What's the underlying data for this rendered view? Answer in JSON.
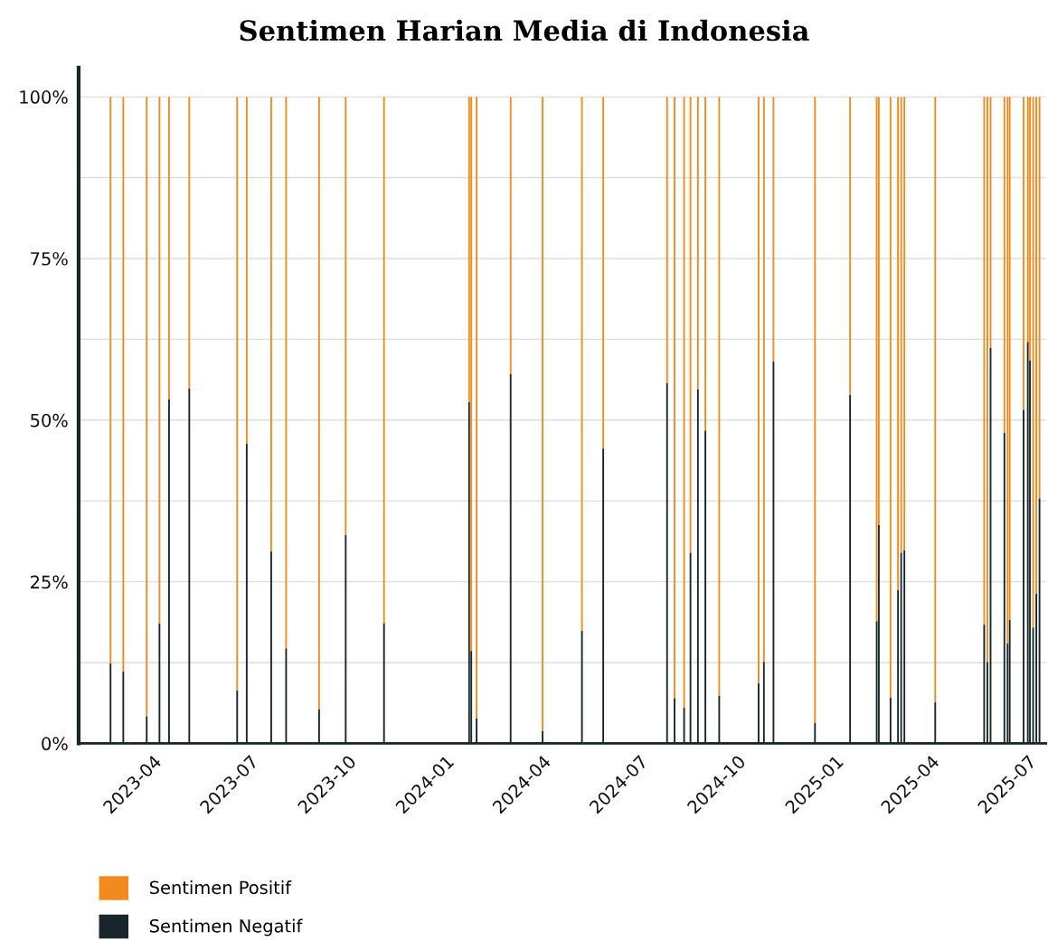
{
  "chart_data": {
    "type": "bar",
    "title": "Sentimen Harian Media di Indonesia",
    "stacked": true,
    "x": [
      "2023-02-20",
      "2023-03-04",
      "2023-03-26",
      "2023-04-07",
      "2023-04-16",
      "2023-05-05",
      "2023-06-19",
      "2023-06-28",
      "2023-07-21",
      "2023-08-04",
      "2023-09-04",
      "2023-09-29",
      "2023-11-04",
      "2024-01-23",
      "2024-01-25",
      "2024-01-30",
      "2024-03-02",
      "2024-04-01",
      "2024-05-08",
      "2024-05-28",
      "2024-07-27",
      "2024-08-03",
      "2024-08-12",
      "2024-08-18",
      "2024-08-25",
      "2024-09-01",
      "2024-09-14",
      "2024-10-21",
      "2024-10-26",
      "2024-11-04",
      "2024-12-13",
      "2025-01-15",
      "2025-02-09",
      "2025-02-11",
      "2025-02-22",
      "2025-03-01",
      "2025-03-04",
      "2025-03-07",
      "2025-04-05",
      "2025-05-21",
      "2025-05-24",
      "2025-05-27",
      "2025-06-09",
      "2025-06-12",
      "2025-06-14",
      "2025-06-27",
      "2025-07-01",
      "2025-07-03",
      "2025-07-06",
      "2025-07-09",
      "2025-07-12"
    ],
    "series": [
      {
        "name": "Sentimen Negatif",
        "color": "#17262b",
        "values": [
          12.4,
          11.1,
          4.2,
          18.5,
          53.2,
          54.9,
          8.2,
          46.4,
          29.7,
          14.7,
          5.3,
          32.2,
          18.6,
          52.8,
          14.3,
          3.9,
          57.1,
          1.9,
          17.4,
          45.6,
          55.7,
          7.0,
          5.5,
          29.5,
          54.8,
          48.4,
          7.4,
          9.3,
          12.6,
          59.1,
          3.2,
          53.9,
          18.9,
          33.8,
          7.1,
          23.7,
          29.5,
          29.9,
          6.4,
          18.4,
          12.6,
          61.2,
          48.0,
          15.5,
          19.1,
          51.6,
          62.1,
          59.2,
          17.9,
          23.2,
          37.9
        ]
      },
      {
        "name": "Sentimen Positif",
        "color": "#f28a1e",
        "values": [
          87.6,
          88.9,
          95.8,
          81.5,
          46.8,
          45.1,
          91.8,
          53.6,
          70.3,
          85.3,
          94.7,
          67.8,
          81.4,
          47.2,
          85.7,
          96.1,
          42.9,
          98.1,
          82.6,
          54.4,
          44.3,
          93.0,
          94.5,
          70.5,
          45.2,
          51.6,
          92.6,
          90.7,
          87.4,
          40.9,
          96.8,
          46.1,
          81.1,
          66.2,
          92.9,
          76.3,
          70.5,
          70.1,
          93.6,
          81.6,
          87.4,
          38.8,
          52.0,
          84.5,
          80.9,
          48.4,
          37.9,
          40.8,
          82.1,
          76.8,
          62.1
        ]
      }
    ],
    "xlim": [
      "2023-01-21",
      "2025-07-18"
    ],
    "xticks": [
      "2023-04",
      "2023-07",
      "2023-10",
      "2024-01",
      "2024-04",
      "2024-07",
      "2024-10",
      "2025-01",
      "2025-04",
      "2025-07"
    ],
    "ylim": [
      0,
      104.5
    ],
    "yticks": [
      {
        "value": 0,
        "label": "0%"
      },
      {
        "value": 12.5,
        "label": null
      },
      {
        "value": 25,
        "label": "25%"
      },
      {
        "value": 37.5,
        "label": null
      },
      {
        "value": 50,
        "label": "50%"
      },
      {
        "value": 62.5,
        "label": null
      },
      {
        "value": 75,
        "label": "75%"
      },
      {
        "value": 87.5,
        "label": null
      },
      {
        "value": 100,
        "label": "100%"
      }
    ],
    "grid": "y",
    "legend": "bottom left"
  }
}
